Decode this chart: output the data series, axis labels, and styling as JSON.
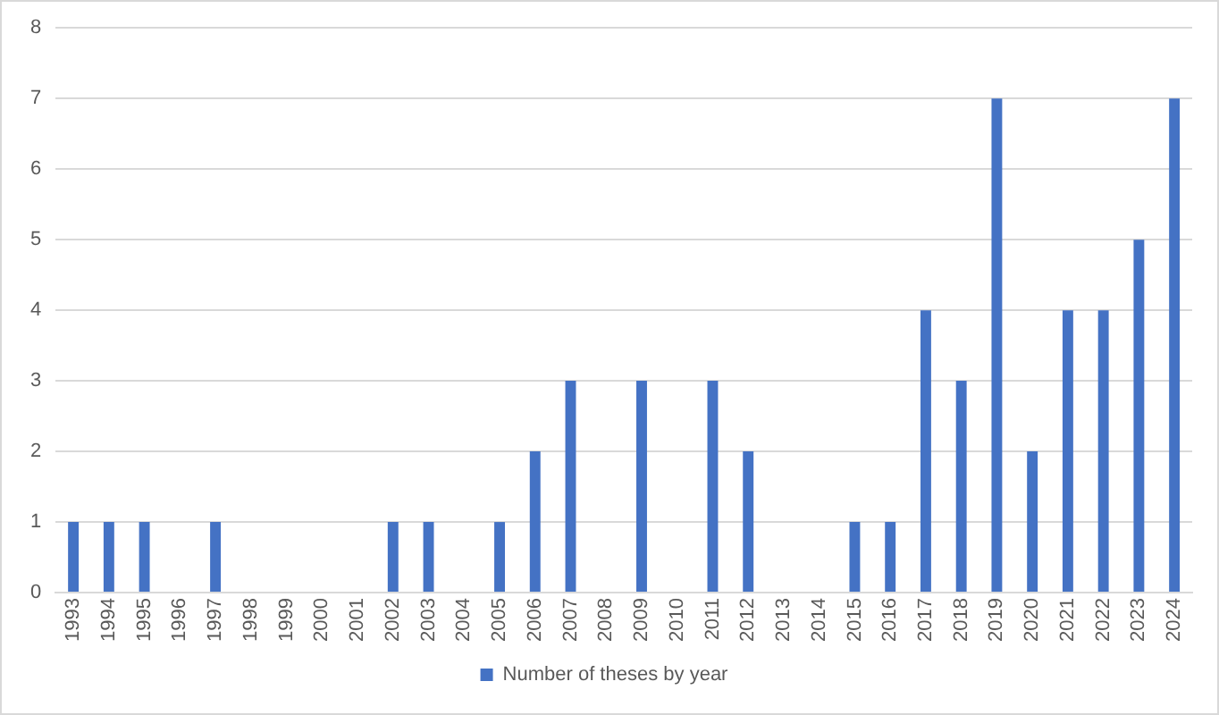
{
  "chart_data": {
    "type": "bar",
    "categories": [
      "1993",
      "1994",
      "1995",
      "1996",
      "1997",
      "1998",
      "1999",
      "2000",
      "2001",
      "2002",
      "2003",
      "2004",
      "2005",
      "2006",
      "2007",
      "2008",
      "2009",
      "2010",
      "2011",
      "2012",
      "2013",
      "2014",
      "2015",
      "2016",
      "2017",
      "2018",
      "2019",
      "2020",
      "2021",
      "2022",
      "2023",
      "2024"
    ],
    "series": [
      {
        "name": "Number of theses by year",
        "color": "#4472c4",
        "values": [
          1,
          1,
          1,
          0,
          1,
          0,
          0,
          0,
          0,
          1,
          1,
          0,
          1,
          2,
          3,
          0,
          3,
          0,
          3,
          2,
          0,
          0,
          1,
          1,
          4,
          3,
          7,
          2,
          4,
          4,
          5,
          7
        ]
      }
    ],
    "ylim": [
      0,
      8
    ],
    "yticks": [
      0,
      1,
      2,
      3,
      4,
      5,
      6,
      7,
      8
    ],
    "grid": "y",
    "legend": "bottom"
  }
}
